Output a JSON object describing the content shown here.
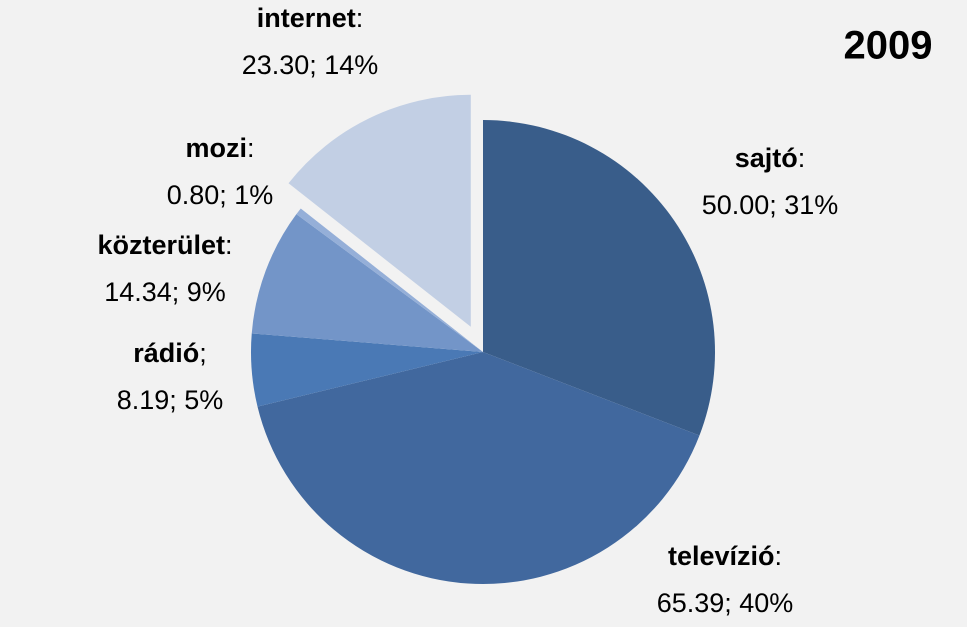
{
  "chart_data": {
    "type": "pie",
    "title": "2009",
    "categories": [
      "sajtó",
      "televízió",
      "rádió",
      "közterület",
      "mozi",
      "internet"
    ],
    "label_separators": [
      ":",
      ":",
      ";",
      ":",
      ":",
      ":"
    ],
    "values": [
      50.0,
      65.39,
      8.19,
      14.34,
      0.8,
      23.3
    ],
    "value_labels": [
      "50.00; 31%",
      "65.39; 40%",
      "8.19; 5%",
      "14.34; 9%",
      "0.80; 1%",
      "23.30; 14%"
    ],
    "colors": [
      "#395d8a",
      "#41689e",
      "#4a79b5",
      "#7395c8",
      "#95afd8",
      "#c2cfe4"
    ],
    "explode": [
      false,
      false,
      false,
      false,
      false,
      true
    ]
  }
}
